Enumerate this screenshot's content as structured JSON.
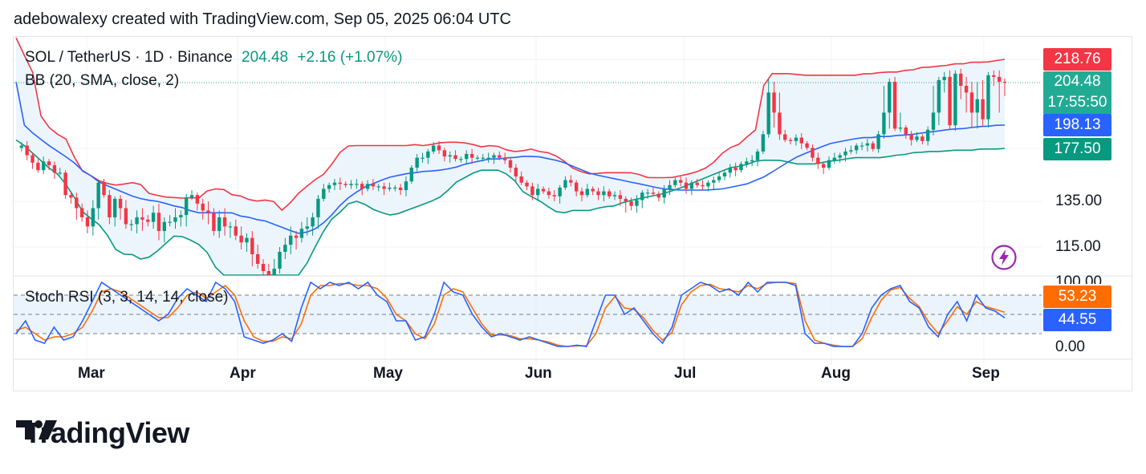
{
  "header": "adebowalexy created with TradingView.com, Sep 05, 2025 06:04 UTC",
  "legend": {
    "symbol": "SOL / TetherUS · 1D · Binance",
    "price": "204.48",
    "change": "+2.16 (+1.07%)",
    "bb": "BB (20, SMA, close, 2)",
    "stoch": "Stoch RSI (3, 3, 14, 14, close)"
  },
  "price_tags": {
    "upper": "218.76",
    "last": "204.48",
    "countdown": "17:55:50",
    "basis": "198.13",
    "lower": "177.50",
    "stoch_d": "53.23",
    "stoch_k": "44.55"
  },
  "price_axis": [
    "135.00",
    "115.00",
    "100.00"
  ],
  "stoch_axis": [
    "0.00"
  ],
  "months": [
    "Mar",
    "Apr",
    "May",
    "Jun",
    "Jul",
    "Aug",
    "Sep"
  ],
  "brand": "TradingView",
  "colors": {
    "up": "#089981",
    "down": "#f23645",
    "bb_upper": "#f23645",
    "bb_basis": "#2962ff",
    "bb_lower": "#089981",
    "bb_fill": "#e8f2fb",
    "stoch_k": "#2962ff",
    "stoch_d": "#ff6d00"
  },
  "chart_data": {
    "type": "candlestick",
    "symbol": "SOL / TetherUS",
    "interval": "1D",
    "exchange": "Binance",
    "x_labels": [
      "Mar",
      "Apr",
      "May",
      "Jun",
      "Jul",
      "Aug",
      "Sep"
    ],
    "close": [
      178,
      180,
      172,
      166,
      160,
      167,
      164,
      158,
      158,
      140,
      138,
      132,
      128,
      124,
      132,
      150,
      140,
      128,
      137,
      132,
      125,
      125,
      128,
      127,
      126,
      130,
      122,
      126,
      126,
      128,
      129,
      138,
      140,
      134,
      131,
      130,
      122,
      128,
      124,
      124,
      120,
      117,
      119,
      112,
      108,
      105,
      100,
      106,
      113,
      116,
      120,
      119,
      123,
      124,
      128,
      137,
      145,
      148,
      150,
      149,
      148,
      149,
      149,
      145,
      149,
      147,
      147,
      145,
      146,
      146,
      144,
      151,
      162,
      170,
      170,
      175,
      180,
      176,
      171,
      172,
      169,
      169,
      173,
      170,
      170,
      170,
      170,
      172,
      170,
      168,
      162,
      155,
      150,
      147,
      140,
      145,
      143,
      140,
      139,
      146,
      152,
      150,
      143,
      140,
      145,
      143,
      140,
      143,
      139,
      140,
      137,
      135,
      133,
      136,
      142,
      142,
      141,
      138,
      145,
      148,
      152,
      150,
      145,
      150,
      148,
      147,
      150,
      152,
      155,
      158,
      162,
      160,
      165,
      167,
      168,
      175,
      190,
      203,
      200,
      190,
      185,
      184,
      187,
      182,
      178,
      170,
      165,
      162,
      168,
      170,
      172,
      175,
      176,
      180,
      180,
      182,
      177,
      190,
      200,
      205,
      195,
      196,
      190,
      185,
      188,
      184,
      194,
      200,
      206,
      208,
      198,
      210,
      204,
      203,
      200,
      202,
      199,
      209,
      208,
      205,
      204.48
    ],
    "bb_upper": [
      230,
      225,
      215,
      210,
      200,
      198,
      195,
      190,
      190,
      182,
      170,
      160,
      158,
      155,
      152,
      150,
      149,
      148,
      148,
      150,
      150,
      150,
      145,
      140,
      140,
      139,
      138,
      138,
      138,
      137,
      138,
      137,
      140,
      145,
      145,
      145,
      144,
      140,
      140,
      138,
      136,
      135,
      136,
      136,
      135,
      132,
      130,
      135,
      140,
      145,
      148,
      152,
      155,
      158,
      165,
      172,
      178,
      180,
      180,
      180,
      180,
      180,
      180,
      180,
      180,
      180,
      180,
      180,
      181,
      180,
      180,
      181,
      182,
      183,
      183,
      183,
      183,
      182,
      181,
      180,
      178,
      180,
      180,
      178,
      176,
      175,
      175,
      176,
      177,
      175,
      175,
      174,
      172,
      170,
      166,
      162,
      160,
      158,
      157,
      157,
      158,
      158,
      158,
      158,
      158,
      158,
      157,
      156,
      154,
      154,
      154,
      154,
      154,
      155,
      156,
      157,
      158,
      160,
      162,
      165,
      170,
      175,
      178,
      180,
      182,
      188,
      190,
      200,
      205,
      210,
      210,
      210,
      210,
      210,
      209,
      209,
      209,
      209,
      209,
      209,
      209,
      209,
      209,
      209,
      209,
      210,
      210,
      210,
      211,
      211,
      211,
      211,
      212,
      212,
      213,
      214,
      214,
      214,
      215,
      215,
      216,
      216,
      216,
      217,
      217,
      217,
      217,
      218,
      218,
      218.76
    ],
    "bb_basis": [
      205,
      200,
      195,
      190,
      186,
      182,
      178,
      175,
      172,
      168,
      165,
      160,
      157,
      154,
      150,
      148,
      146,
      144,
      142,
      140,
      138,
      137,
      136,
      135,
      135,
      134,
      133,
      133,
      132,
      131,
      130,
      130,
      130,
      130,
      130,
      130,
      130,
      129,
      128,
      128,
      127,
      127,
      126,
      125,
      124,
      123,
      122,
      121,
      121,
      122,
      123,
      125,
      127,
      130,
      133,
      136,
      140,
      143,
      146,
      148,
      150,
      152,
      154,
      155,
      156,
      157,
      158,
      158,
      159,
      159,
      160,
      160,
      161,
      162,
      163,
      165,
      166,
      167,
      168,
      169,
      169,
      169,
      170,
      170,
      171,
      171,
      171,
      171,
      170,
      169,
      168,
      167,
      165,
      163,
      161,
      159,
      157,
      156,
      155,
      154,
      153,
      152,
      151,
      150,
      149,
      148,
      147,
      146,
      145,
      145,
      144,
      144,
      144,
      144,
      144,
      144,
      144,
      145,
      145,
      146,
      147,
      148,
      149,
      151,
      153,
      155,
      158,
      161,
      164,
      167,
      170,
      172,
      174,
      176,
      178,
      180,
      182,
      183,
      184,
      185,
      186,
      187,
      187,
      187,
      188,
      188,
      188,
      189,
      189,
      190,
      190,
      191,
      192,
      192,
      193,
      194,
      194,
      195,
      195,
      196,
      196,
      197,
      197,
      198,
      198,
      198.13
    ],
    "bb_lower": [
      185,
      181,
      178,
      172,
      168,
      163,
      160,
      156,
      150,
      142,
      135,
      130,
      128,
      126,
      124,
      120,
      115,
      112,
      112,
      112,
      110,
      110,
      111,
      113,
      115,
      118,
      120,
      120,
      118,
      118,
      116,
      114,
      110,
      105,
      100,
      96,
      94,
      94,
      96,
      98,
      98,
      97,
      98,
      98,
      100,
      100,
      102,
      105,
      110,
      115,
      120,
      125,
      128,
      130,
      133,
      135,
      135,
      134,
      132,
      131,
      130,
      129,
      129,
      130,
      131,
      132,
      133,
      134,
      135,
      137,
      140,
      145,
      150,
      153,
      155,
      158,
      160,
      160,
      160,
      160,
      158,
      155,
      150,
      143,
      140,
      137,
      135,
      133,
      131,
      130,
      130,
      131,
      131,
      131,
      131,
      132,
      132,
      133,
      133,
      134,
      135,
      136,
      137,
      138,
      139,
      140,
      141,
      143,
      144,
      146,
      148,
      150,
      152,
      154,
      156,
      158,
      160,
      162,
      163,
      163,
      165,
      167,
      168,
      168,
      168,
      168,
      167,
      166,
      165,
      165,
      165,
      165,
      166,
      167,
      168,
      168,
      169,
      170,
      170,
      170,
      170,
      170,
      170,
      171,
      172,
      172,
      173,
      174,
      174,
      175,
      175,
      175,
      175,
      176,
      176,
      176,
      176,
      176,
      177,
      177,
      177,
      177,
      177.5
    ],
    "stoch_k": [
      20,
      40,
      10,
      5,
      30,
      10,
      15,
      40,
      70,
      100,
      90,
      80,
      70,
      60,
      50,
      40,
      50,
      75,
      90,
      80,
      70,
      100,
      90,
      70,
      15,
      10,
      5,
      10,
      20,
      8,
      60,
      100,
      90,
      100,
      95,
      100,
      90,
      100,
      80,
      70,
      40,
      40,
      10,
      15,
      50,
      100,
      85,
      80,
      50,
      30,
      15,
      20,
      15,
      10,
      15,
      10,
      5,
      0,
      0,
      2,
      0,
      40,
      80,
      80,
      50,
      60,
      40,
      20,
      5,
      30,
      80,
      90,
      100,
      95,
      85,
      90,
      80,
      100,
      85,
      100,
      100,
      100,
      95,
      20,
      5,
      5,
      0,
      0,
      0,
      20,
      60,
      80,
      90,
      95,
      70,
      60,
      30,
      15,
      50,
      70,
      40,
      80,
      60,
      55,
      44.55
    ],
    "stoch_d": [
      25,
      30,
      20,
      10,
      15,
      15,
      20,
      30,
      55,
      85,
      90,
      85,
      75,
      65,
      55,
      45,
      45,
      60,
      80,
      85,
      75,
      85,
      95,
      80,
      40,
      15,
      8,
      8,
      15,
      12,
      35,
      80,
      95,
      95,
      98,
      98,
      95,
      95,
      90,
      75,
      50,
      40,
      20,
      12,
      35,
      80,
      90,
      85,
      60,
      35,
      18,
      18,
      17,
      12,
      12,
      10,
      7,
      2,
      0,
      1,
      1,
      20,
      60,
      78,
      60,
      58,
      45,
      25,
      10,
      22,
      65,
      85,
      95,
      97,
      90,
      88,
      85,
      95,
      90,
      98,
      100,
      100,
      98,
      40,
      10,
      5,
      2,
      0,
      0,
      12,
      45,
      72,
      88,
      92,
      75,
      62,
      38,
      20,
      40,
      62,
      50,
      70,
      62,
      58,
      53.23
    ],
    "stoch_levels": [
      80,
      50,
      20
    ]
  }
}
